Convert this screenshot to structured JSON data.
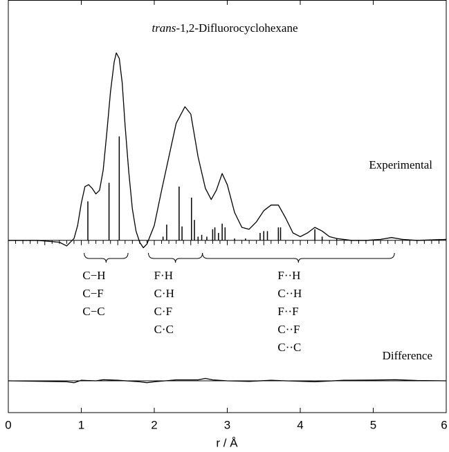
{
  "chart_data": [
    {
      "type": "line",
      "title_prefix": "trans",
      "title": "-1,2-Difluorocyclohexane",
      "label": "Experimental",
      "xlim": [
        0,
        6
      ],
      "ylim": [
        -12,
        128
      ],
      "color": "#000000",
      "x": [
        0,
        0.4,
        0.7,
        0.8,
        0.9,
        0.95,
        1.0,
        1.05,
        1.1,
        1.15,
        1.2,
        1.25,
        1.3,
        1.35,
        1.4,
        1.45,
        1.48,
        1.52,
        1.56,
        1.6,
        1.65,
        1.7,
        1.75,
        1.8,
        1.85,
        1.9,
        2.0,
        2.1,
        2.2,
        2.3,
        2.42,
        2.5,
        2.6,
        2.7,
        2.78,
        2.85,
        2.93,
        3.0,
        3.1,
        3.2,
        3.3,
        3.4,
        3.5,
        3.6,
        3.7,
        3.8,
        3.9,
        4.0,
        4.1,
        4.2,
        4.3,
        4.4,
        4.5,
        4.7,
        4.9,
        5.1,
        5.25,
        5.4,
        5.6,
        6.0
      ],
      "values": [
        0,
        0,
        -1,
        -3,
        1,
        8,
        20,
        29,
        30,
        28,
        25,
        27,
        38,
        58,
        80,
        96,
        101,
        98,
        85,
        62,
        37,
        17,
        5,
        -1,
        -4,
        -2,
        8,
        27,
        45,
        63,
        72,
        68,
        45,
        28,
        22,
        27,
        36,
        30,
        15,
        7,
        6,
        10,
        16,
        19,
        19,
        12,
        4,
        2,
        4,
        7,
        5,
        2,
        1,
        0,
        0,
        0.5,
        1.5,
        0.5,
        0,
        0.5
      ],
      "distances": {
        "x": [
          1.09,
          1.38,
          1.52,
          2.12,
          2.17,
          2.34,
          2.38,
          2.51,
          2.55,
          2.6,
          2.65,
          2.72,
          2.8,
          2.83,
          2.88,
          2.93,
          2.97,
          3.1,
          3.25,
          3.45,
          3.5,
          3.55,
          3.7,
          3.73,
          4.2,
          4.3,
          4.5
        ],
        "values": [
          21,
          31,
          56,
          2,
          8.5,
          29,
          7.5,
          23,
          11,
          2,
          3,
          2,
          6,
          7,
          4,
          9,
          7,
          1,
          1,
          4,
          5,
          5,
          7,
          7,
          6,
          2,
          1
        ]
      },
      "annotations": [
        {
          "range": [
            1.04,
            1.64
          ],
          "labels": [
            "C−H",
            "C−F",
            "C−C"
          ]
        },
        {
          "range": [
            1.92,
            2.66
          ],
          "labels": [
            "F·H",
            "C·H",
            "C·F",
            "C·C"
          ]
        },
        {
          "range": [
            2.66,
            5.29
          ],
          "labels": [
            "F··H",
            "C··H",
            "F··F",
            "C··F",
            "C··C"
          ]
        }
      ]
    },
    {
      "type": "line",
      "label": "Difference",
      "xlim": [
        0,
        6
      ],
      "ylim": [
        -10,
        10
      ],
      "xticks": [
        0,
        1,
        2,
        3,
        4,
        5,
        6
      ],
      "xlabel": "r / Å",
      "color": "#000000",
      "x": [
        0,
        0.8,
        0.9,
        1.0,
        1.2,
        1.3,
        1.5,
        1.8,
        1.9,
        2.0,
        2.3,
        2.6,
        2.7,
        2.8,
        3.0,
        3.3,
        3.6,
        3.8,
        4.2,
        4.6,
        5.0,
        5.3,
        5.6,
        6.0
      ],
      "values": [
        0,
        -0.5,
        -1,
        0.3,
        0,
        0.6,
        0.3,
        -0.5,
        -1,
        -0.5,
        0.5,
        0.5,
        1.3,
        0.5,
        0,
        -0.3,
        0.3,
        0,
        -0.5,
        0.3,
        0.4,
        0.6,
        0.2,
        0
      ]
    }
  ]
}
